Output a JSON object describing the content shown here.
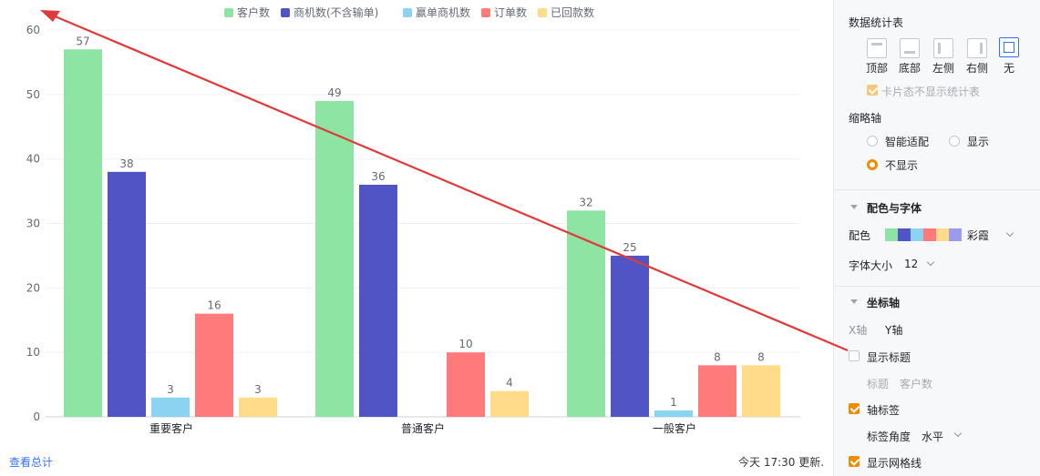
{
  "chart_data": {
    "type": "bar",
    "categories": [
      "重要客户",
      "普通客户",
      "一般客户"
    ],
    "series": [
      {
        "name": "客户数",
        "color": "#8ee4a3",
        "values": [
          57,
          49,
          32
        ]
      },
      {
        "name": "商机数(不含输单)",
        "color": "#5154c4",
        "values": [
          38,
          36,
          25
        ]
      },
      {
        "name": "赢单商机数",
        "color": "#8bd3f1",
        "values": [
          3,
          null,
          1
        ]
      },
      {
        "name": "订单数",
        "color": "#ff7b7b",
        "values": [
          16,
          10,
          8
        ]
      },
      {
        "name": "已回款数",
        "color": "#ffdb8a",
        "values": [
          3,
          4,
          8
        ]
      }
    ],
    "ylim": [
      0,
      60
    ],
    "yticks": [
      0,
      10,
      20,
      30,
      40,
      50,
      60
    ],
    "grid": true,
    "legend": "top-center"
  },
  "footer": {
    "view_total": "查看总计",
    "updated": "今天 17:30 更新."
  },
  "panel": {
    "stats_table": {
      "title": "数据统计表",
      "positions": [
        "顶部",
        "底部",
        "左侧",
        "右侧",
        "无"
      ],
      "selected": "无",
      "card_hide": "卡片态不显示统计表"
    },
    "thumbnail_axis": {
      "title": "缩略轴",
      "options": [
        "智能适配",
        "显示",
        "不显示"
      ],
      "selected": "不显示"
    },
    "color_font": {
      "title": "配色与字体",
      "color_label": "配色",
      "palette_name": "彩霞",
      "palette": [
        "#8ee4a3",
        "#5154c4",
        "#8bd3f1",
        "#ff7b7b",
        "#ffdb8a",
        "#9b9bee"
      ],
      "font_size_label": "字体大小",
      "font_size": "12"
    },
    "axis": {
      "title": "坐标轴",
      "tabs": [
        "X轴",
        "Y轴"
      ],
      "show_title": "显示标题",
      "title_label": "标题",
      "title_value": "客户数",
      "axis_label": "轴标签",
      "label_angle_label": "标签角度",
      "label_angle": "水平",
      "show_grid": "显示网格线"
    }
  }
}
